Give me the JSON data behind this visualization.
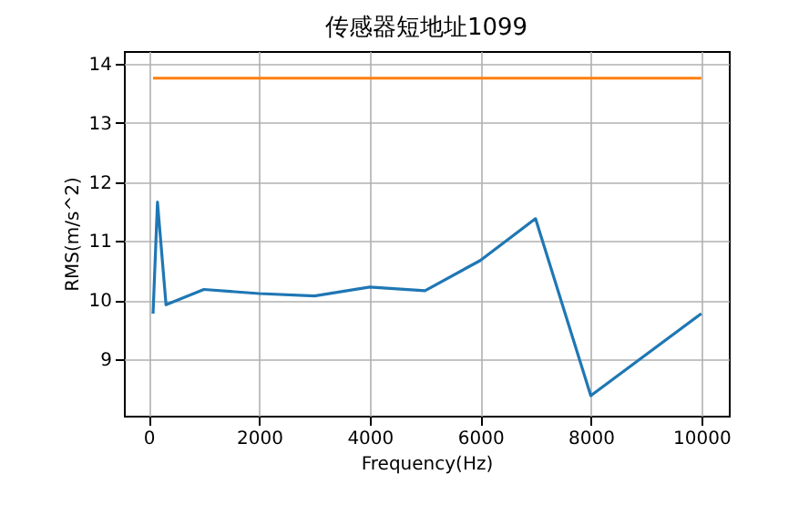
{
  "chart_data": {
    "type": "line",
    "title": "传感器短地址1099",
    "xlabel": "Frequency(Hz)",
    "ylabel": "RMS(m/s^2)",
    "xlim": [
      -447.5,
      10497.5
    ],
    "xticks": [
      0,
      2000,
      4000,
      6000,
      8000,
      10000
    ],
    "ylim": [
      8.04,
      14.22
    ],
    "yticks": [
      9,
      10,
      11,
      12,
      13,
      14
    ],
    "grid": true,
    "series": [
      {
        "color": "#1f77b4",
        "x": [
          80,
          160,
          315,
          1000,
          2000,
          3000,
          4000,
          5000,
          6000,
          7000,
          8000,
          10000
        ],
        "values": [
          9.77,
          11.66,
          9.92,
          10.18,
          10.11,
          10.07,
          10.22,
          10.16,
          10.67,
          11.38,
          8.38,
          9.77
        ]
      },
      {
        "color": "#ff7f0e",
        "x": [
          80,
          10000
        ],
        "values": [
          13.76,
          13.76
        ]
      }
    ]
  }
}
